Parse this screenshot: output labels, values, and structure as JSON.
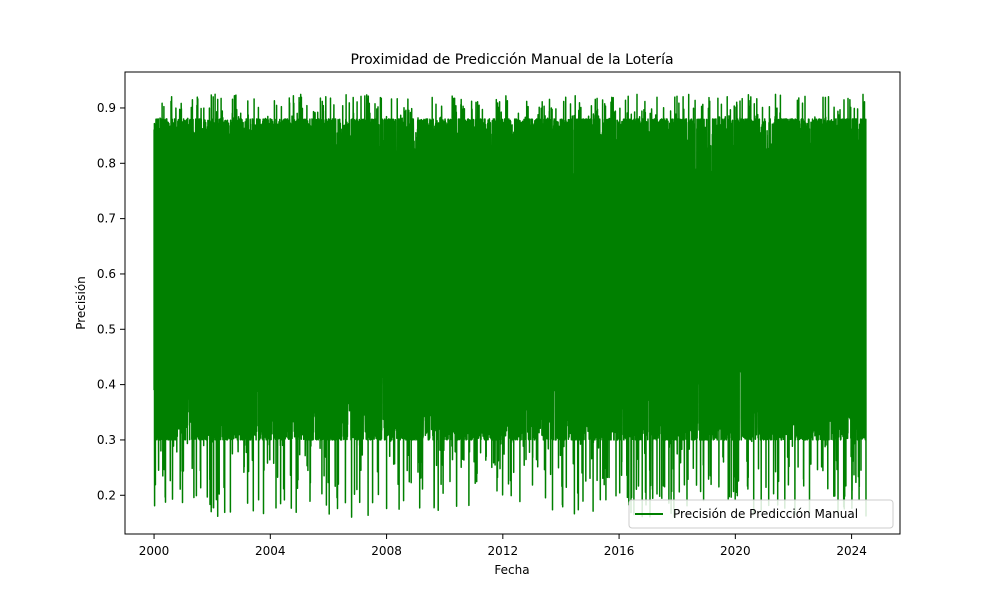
{
  "chart_data": {
    "type": "line",
    "title": "Proximidad de Predicción Manual de la Lotería",
    "xlabel": "Fecha",
    "ylabel": "Precisión",
    "x_ticks": [
      "2000",
      "2004",
      "2008",
      "2012",
      "2016",
      "2020",
      "2024"
    ],
    "y_ticks": [
      "0.2",
      "0.3",
      "0.4",
      "0.5",
      "0.6",
      "0.7",
      "0.8",
      "0.9"
    ],
    "xlim": [
      "1999-01-01",
      "2025-09-01"
    ],
    "ylim": [
      0.13,
      0.965
    ],
    "grid": false,
    "legend_position": "lower right",
    "series": [
      {
        "name": "Precisión de Predicción Manual",
        "color": "#008000",
        "x_start": "2000-01-01",
        "x_end": "2024-06-30",
        "y_min": 0.16,
        "y_max": 0.925,
        "typical_low": 0.3,
        "typical_high": 0.88
      }
    ]
  }
}
